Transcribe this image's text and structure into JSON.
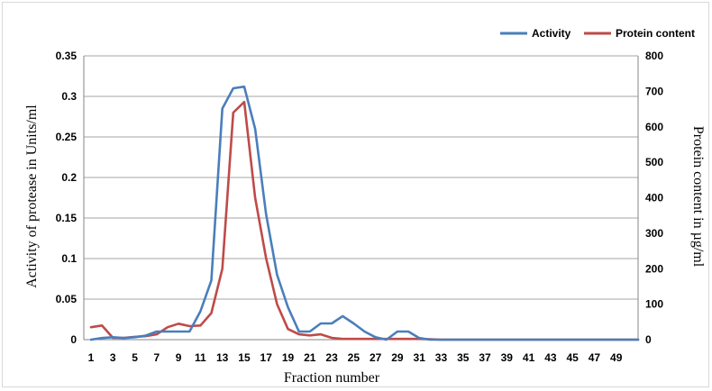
{
  "chart_data": {
    "type": "line",
    "title": "",
    "xlabel": "Fraction number",
    "ylabel": "Activity of protease in Units/ml",
    "y2label": "Protein content in µg/ml",
    "ylim": [
      0,
      0.35
    ],
    "y2lim": [
      0,
      800
    ],
    "yticks": [
      "0",
      "0.05",
      "0.1",
      "0.15",
      "0.2",
      "0.25",
      "0.3",
      "0.35"
    ],
    "y2ticks": [
      "0",
      "100",
      "200",
      "300",
      "400",
      "500",
      "600",
      "700",
      "800"
    ],
    "x": [
      1,
      2,
      3,
      4,
      5,
      6,
      7,
      8,
      9,
      10,
      11,
      12,
      13,
      14,
      15,
      16,
      17,
      18,
      19,
      20,
      21,
      22,
      23,
      24,
      25,
      26,
      27,
      28,
      29,
      30,
      31,
      32,
      33,
      34,
      35,
      36,
      37,
      38,
      39,
      40,
      41,
      42,
      43,
      44,
      45,
      46,
      47,
      48,
      49,
      50,
      51
    ],
    "xtick_labels": [
      "1",
      "3",
      "5",
      "7",
      "9",
      "11",
      "13",
      "15",
      "17",
      "19",
      "21",
      "23",
      "25",
      "27",
      "29",
      "31",
      "33",
      "35",
      "37",
      "39",
      "41",
      "43",
      "45",
      "47",
      "49"
    ],
    "grid": "horizontal",
    "legend_position": "top-right",
    "series": [
      {
        "name": "Activity",
        "axis": "left",
        "color": "#4a7ebb",
        "values": [
          0,
          0.002,
          0.003,
          0.002,
          0.003,
          0.005,
          0.01,
          0.01,
          0.01,
          0.01,
          0.035,
          0.073,
          0.285,
          0.31,
          0.312,
          0.26,
          0.155,
          0.08,
          0.04,
          0.01,
          0.01,
          0.02,
          0.02,
          0.029,
          0.02,
          0.01,
          0.003,
          0,
          0.01,
          0.01,
          0.002,
          0,
          0,
          0,
          0,
          0,
          0,
          0,
          0,
          0,
          0,
          0,
          0,
          0,
          0,
          0,
          0,
          0,
          0,
          0,
          0
        ]
      },
      {
        "name": "Protein content",
        "axis": "right",
        "color": "#be4b48",
        "values": [
          35,
          40,
          5,
          5,
          8,
          10,
          15,
          35,
          45,
          38,
          40,
          75,
          200,
          640,
          670,
          400,
          230,
          100,
          30,
          15,
          12,
          15,
          5,
          2,
          2,
          2,
          2,
          2,
          2,
          2,
          2,
          1,
          0,
          0,
          0,
          0,
          0,
          0,
          0,
          0,
          0,
          0,
          0,
          0,
          0,
          0,
          0,
          0,
          0,
          0,
          0
        ]
      }
    ]
  }
}
